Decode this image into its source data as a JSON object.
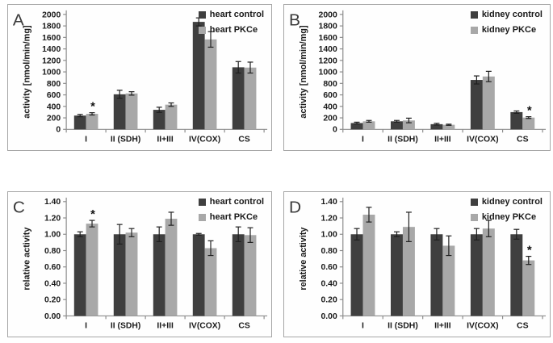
{
  "figure": {
    "background": "#ffffff",
    "panel_border": "#a6a6a6",
    "axis_color": "#8c8c8c",
    "error_bar_color": "#1f1f1f",
    "text_color": "#1a1a1a",
    "sig_marker": "*"
  },
  "chart_data": [
    {
      "type": "bar",
      "panel_label": "A",
      "title": "",
      "xlabel": "",
      "ylabel": "activity [nmol/min/mg]",
      "ylim": [
        0,
        2000
      ],
      "ytick_step": 200,
      "ytick_labels": [
        "0",
        "200",
        "400",
        "600",
        "800",
        "1000",
        "1200",
        "1400",
        "1600",
        "1800",
        "2000"
      ],
      "categories": [
        "I",
        "II (SDH)",
        "II+III",
        "IV(COX)",
        "CS"
      ],
      "grid": false,
      "error_bars": true,
      "legend_position": "top-right",
      "series": [
        {
          "name": "heart control",
          "color": "#3f3f3f",
          "values": [
            240,
            610,
            340,
            1870,
            1080
          ],
          "errors": [
            20,
            70,
            45,
            70,
            100
          ],
          "sig": [
            false,
            false,
            false,
            false,
            false
          ]
        },
        {
          "name": "heart PKCe",
          "color": "#a8a8a8",
          "values": [
            270,
            625,
            430,
            1565,
            1075
          ],
          "errors": [
            20,
            30,
            30,
            135,
            95
          ],
          "sig": [
            true,
            false,
            false,
            false,
            false
          ]
        }
      ]
    },
    {
      "type": "bar",
      "panel_label": "B",
      "title": "",
      "xlabel": "",
      "ylabel": "activity [nmol/min/mg]",
      "ylim": [
        0,
        2000
      ],
      "ytick_step": 200,
      "ytick_labels": [
        "0",
        "200",
        "400",
        "600",
        "800",
        "1000",
        "1200",
        "1400",
        "1600",
        "1800",
        "2000"
      ],
      "categories": [
        "I",
        "II (SDH)",
        "II+III",
        "IV(COX)",
        "CS"
      ],
      "grid": false,
      "error_bars": true,
      "legend_position": "top-right",
      "series": [
        {
          "name": "kidney control",
          "color": "#3f3f3f",
          "values": [
            110,
            140,
            90,
            860,
            300
          ],
          "errors": [
            15,
            15,
            15,
            70,
            20
          ],
          "sig": [
            false,
            false,
            false,
            false,
            false
          ]
        },
        {
          "name": "kidney PKCe",
          "color": "#a8a8a8",
          "values": [
            140,
            155,
            80,
            920,
            205
          ],
          "errors": [
            15,
            40,
            10,
            90,
            15
          ],
          "sig": [
            false,
            false,
            false,
            false,
            true
          ]
        }
      ]
    },
    {
      "type": "bar",
      "panel_label": "C",
      "title": "",
      "xlabel": "",
      "ylabel": "relative activity",
      "ylim": [
        0,
        1.4
      ],
      "ytick_step": 0.2,
      "ytick_labels": [
        "0.00",
        "0.20",
        "0.40",
        "0.60",
        "0.80",
        "1.00",
        "1.20",
        "1.40"
      ],
      "categories": [
        "I",
        "II (SDH)",
        "II+III",
        "IV(COX)",
        "CS"
      ],
      "grid": false,
      "error_bars": true,
      "legend_position": "top-right",
      "series": [
        {
          "name": "heart control",
          "color": "#3f3f3f",
          "values": [
            1.0,
            1.0,
            1.0,
            1.0,
            1.0
          ],
          "errors": [
            0.03,
            0.12,
            0.09,
            0.01,
            0.09
          ],
          "sig": [
            false,
            false,
            false,
            false,
            false
          ]
        },
        {
          "name": "heart PKCe",
          "color": "#a8a8a8",
          "values": [
            1.13,
            1.02,
            1.19,
            0.83,
            0.99
          ],
          "errors": [
            0.04,
            0.05,
            0.08,
            0.09,
            0.09
          ],
          "sig": [
            true,
            false,
            false,
            false,
            false
          ]
        }
      ]
    },
    {
      "type": "bar",
      "panel_label": "D",
      "title": "",
      "xlabel": "",
      "ylabel": "relative activity",
      "ylim": [
        0,
        1.4
      ],
      "ytick_step": 0.2,
      "ytick_labels": [
        "0.00",
        "0.20",
        "0.40",
        "0.60",
        "0.80",
        "1.00",
        "1.20",
        "1.40"
      ],
      "categories": [
        "I",
        "II (SDH)",
        "II+III",
        "IV(COX)",
        "CS"
      ],
      "grid": false,
      "error_bars": true,
      "legend_position": "top-right",
      "series": [
        {
          "name": "kidney control",
          "color": "#3f3f3f",
          "values": [
            1.0,
            1.0,
            1.0,
            1.0,
            1.0
          ],
          "errors": [
            0.07,
            0.03,
            0.07,
            0.07,
            0.06
          ],
          "sig": [
            false,
            false,
            false,
            false,
            false
          ]
        },
        {
          "name": "kidney PKCe",
          "color": "#a8a8a8",
          "values": [
            1.24,
            1.09,
            0.86,
            1.07,
            0.68
          ],
          "errors": [
            0.09,
            0.18,
            0.12,
            0.1,
            0.05
          ],
          "sig": [
            false,
            false,
            false,
            false,
            true
          ]
        }
      ]
    }
  ]
}
